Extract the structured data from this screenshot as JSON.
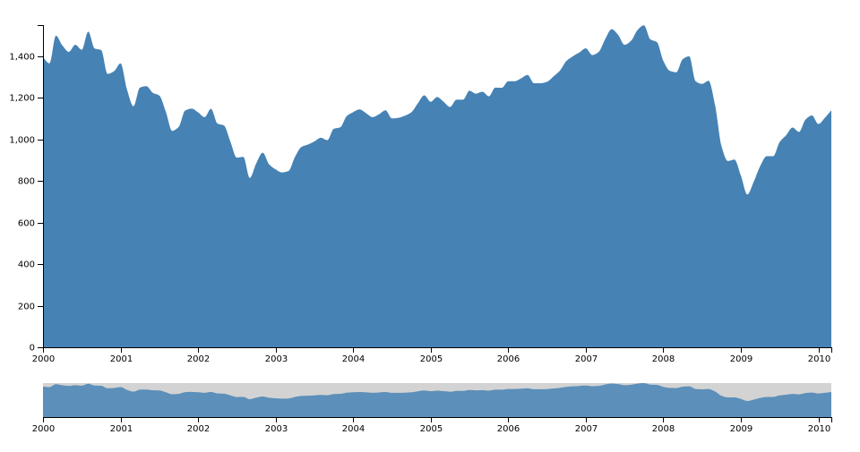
{
  "colors": {
    "area_fill": "#4682b4",
    "context_fill": "#4682b4",
    "brush_selection": "#d3d3d3",
    "axis": "#000000"
  },
  "chart_data": {
    "type": "area",
    "title": "",
    "xlabel": "",
    "ylabel": "",
    "ylim": [
      0,
      1550
    ],
    "xlim": [
      "2000-01",
      "2010-03"
    ],
    "grid": false,
    "y_ticks": [
      "0",
      "200",
      "400",
      "600",
      "800",
      "1,000",
      "1,200",
      "1,400"
    ],
    "y_tick_values": [
      0,
      200,
      400,
      600,
      800,
      1000,
      1200,
      1400
    ],
    "x_ticks": [
      "2000",
      "2001",
      "2002",
      "2003",
      "2004",
      "2005",
      "2006",
      "2007",
      "2008",
      "2009",
      "2010"
    ],
    "context_x_ticks": [
      "2000",
      "2001",
      "2002",
      "2003",
      "2004",
      "2005",
      "2006",
      "2007",
      "2008",
      "2009",
      "2010"
    ],
    "brush_extent": [
      "2000-01",
      "2010-03"
    ],
    "series": [
      {
        "x": [
          "2000-01",
          "2000-02",
          "2000-03",
          "2000-04",
          "2000-05",
          "2000-06",
          "2000-07",
          "2000-08",
          "2000-09",
          "2000-10",
          "2000-11",
          "2000-12",
          "2001-01",
          "2001-02",
          "2001-03",
          "2001-04",
          "2001-05",
          "2001-06",
          "2001-07",
          "2001-08",
          "2001-09",
          "2001-10",
          "2001-11",
          "2001-12",
          "2002-01",
          "2002-02",
          "2002-03",
          "2002-04",
          "2002-05",
          "2002-06",
          "2002-07",
          "2002-08",
          "2002-09",
          "2002-10",
          "2002-11",
          "2002-12",
          "2003-01",
          "2003-02",
          "2003-03",
          "2003-04",
          "2003-05",
          "2003-06",
          "2003-07",
          "2003-08",
          "2003-09",
          "2003-10",
          "2003-11",
          "2003-12",
          "2004-01",
          "2004-02",
          "2004-03",
          "2004-04",
          "2004-05",
          "2004-06",
          "2004-07",
          "2004-08",
          "2004-09",
          "2004-10",
          "2004-11",
          "2004-12",
          "2005-01",
          "2005-02",
          "2005-03",
          "2005-04",
          "2005-05",
          "2005-06",
          "2005-07",
          "2005-08",
          "2005-09",
          "2005-10",
          "2005-11",
          "2005-12",
          "2006-01",
          "2006-02",
          "2006-03",
          "2006-04",
          "2006-05",
          "2006-06",
          "2006-07",
          "2006-08",
          "2006-09",
          "2006-10",
          "2006-11",
          "2006-12",
          "2007-01",
          "2007-02",
          "2007-03",
          "2007-04",
          "2007-05",
          "2007-06",
          "2007-07",
          "2007-08",
          "2007-09",
          "2007-10",
          "2007-11",
          "2007-12",
          "2008-01",
          "2008-02",
          "2008-03",
          "2008-04",
          "2008-05",
          "2008-06",
          "2008-07",
          "2008-08",
          "2008-09",
          "2008-10",
          "2008-11",
          "2008-12",
          "2009-01",
          "2009-02",
          "2009-03",
          "2009-04",
          "2009-05",
          "2009-06",
          "2009-07",
          "2009-08",
          "2009-09",
          "2009-10",
          "2009-11",
          "2009-12",
          "2010-01",
          "2010-02",
          "2010-03"
        ],
        "values": [
          1394,
          1366,
          1499,
          1452,
          1421,
          1455,
          1431,
          1518,
          1437,
          1430,
          1315,
          1328,
          1366,
          1240,
          1160,
          1249,
          1256,
          1224,
          1211,
          1134,
          1041,
          1060,
          1139,
          1148,
          1130,
          1107,
          1147,
          1076,
          1067,
          989,
          912,
          916,
          815,
          885,
          936,
          880,
          856,
          841,
          848,
          916,
          964,
          975,
          990,
          1008,
          996,
          1051,
          1058,
          1112,
          1131,
          1144,
          1126,
          1107,
          1121,
          1140,
          1101,
          1104,
          1114,
          1130,
          1173,
          1212,
          1181,
          1204,
          1181,
          1156,
          1191,
          1191,
          1234,
          1220,
          1229,
          1207,
          1249,
          1248,
          1280,
          1280,
          1294,
          1310,
          1270,
          1270,
          1277,
          1303,
          1331,
          1377,
          1400,
          1418,
          1438,
          1406,
          1421,
          1482,
          1530,
          1503,
          1455,
          1474,
          1526,
          1549,
          1481,
          1468,
          1378,
          1330,
          1323,
          1386,
          1400,
          1280,
          1267,
          1282,
          1166,
          968,
          896,
          903,
          826,
          735,
          797,
          872,
          919,
          919,
          987,
          1020,
          1057,
          1036,
          1095,
          1115,
          1074,
          1104,
          1140
        ]
      }
    ]
  }
}
